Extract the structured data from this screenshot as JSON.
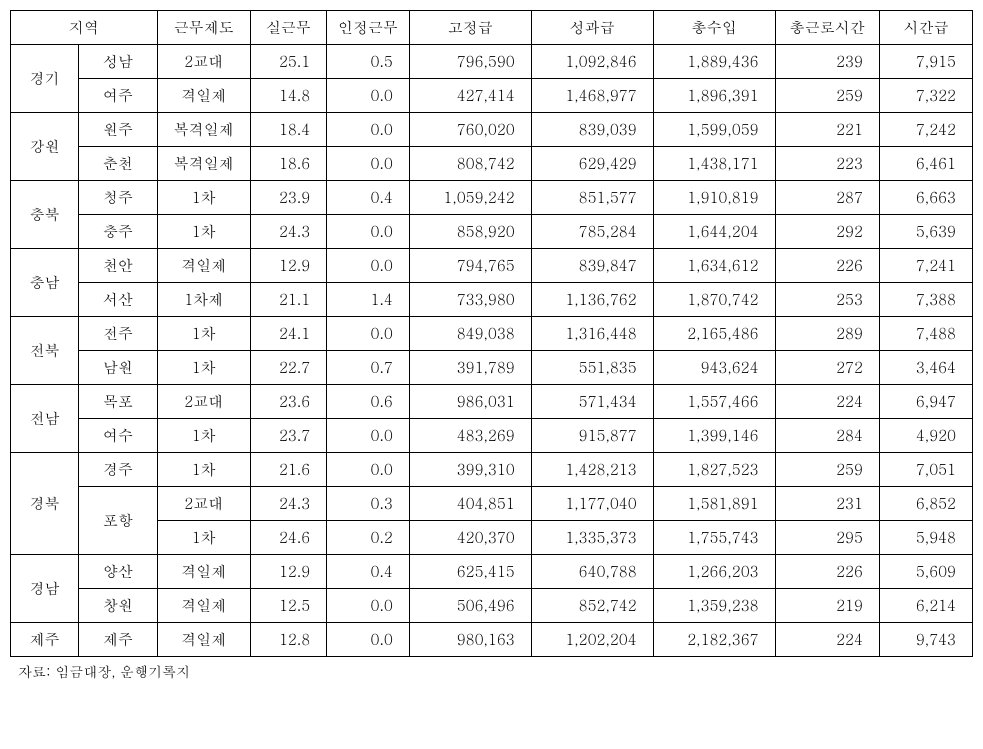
{
  "table": {
    "headers": {
      "region": "지역",
      "system": "근무제도",
      "actual": "실근무",
      "recognized": "인정근무",
      "fixed": "고정급",
      "performance": "성과급",
      "totalIncome": "총수입",
      "totalHours": "총근로시간",
      "hourly": "시간급"
    },
    "regions": [
      {
        "name": "경기",
        "cities": [
          {
            "city": "성남",
            "system": "2교대",
            "actual": "25.1",
            "recog": "0.5",
            "fixed": "796,590",
            "perf": "1,092,846",
            "total": "1,889,436",
            "hours": "239",
            "hourly": "7,915"
          },
          {
            "city": "여주",
            "system": "격일제",
            "actual": "14.8",
            "recog": "0.0",
            "fixed": "427,414",
            "perf": "1,468,977",
            "total": "1,896,391",
            "hours": "259",
            "hourly": "7,322"
          }
        ]
      },
      {
        "name": "강원",
        "cities": [
          {
            "city": "원주",
            "system": "복격일제",
            "actual": "18.4",
            "recog": "0.0",
            "fixed": "760,020",
            "perf": "839,039",
            "total": "1,599,059",
            "hours": "221",
            "hourly": "7,242"
          },
          {
            "city": "춘천",
            "system": "복격일제",
            "actual": "18.6",
            "recog": "0.0",
            "fixed": "808,742",
            "perf": "629,429",
            "total": "1,438,171",
            "hours": "223",
            "hourly": "6,461"
          }
        ]
      },
      {
        "name": "충북",
        "cities": [
          {
            "city": "청주",
            "system": "1차",
            "actual": "23.9",
            "recog": "0.4",
            "fixed": "1,059,242",
            "perf": "851,577",
            "total": "1,910,819",
            "hours": "287",
            "hourly": "6,663"
          },
          {
            "city": "충주",
            "system": "1차",
            "actual": "24.3",
            "recog": "0.0",
            "fixed": "858,920",
            "perf": "785,284",
            "total": "1,644,204",
            "hours": "292",
            "hourly": "5,639"
          }
        ]
      },
      {
        "name": "충남",
        "cities": [
          {
            "city": "천안",
            "system": "격일제",
            "actual": "12.9",
            "recog": "0.0",
            "fixed": "794,765",
            "perf": "839,847",
            "total": "1,634,612",
            "hours": "226",
            "hourly": "7,241"
          },
          {
            "city": "서산",
            "system": "1차제",
            "actual": "21.1",
            "recog": "1.4",
            "fixed": "733,980",
            "perf": "1,136,762",
            "total": "1,870,742",
            "hours": "253",
            "hourly": "7,388"
          }
        ]
      },
      {
        "name": "전북",
        "cities": [
          {
            "city": "전주",
            "system": "1차",
            "actual": "24.1",
            "recog": "0.0",
            "fixed": "849,038",
            "perf": "1,316,448",
            "total": "2,165,486",
            "hours": "289",
            "hourly": "7,488"
          },
          {
            "city": "남원",
            "system": "1차",
            "actual": "22.7",
            "recog": "0.7",
            "fixed": "391,789",
            "perf": "551,835",
            "total": "943,624",
            "hours": "272",
            "hourly": "3,464"
          }
        ]
      },
      {
        "name": "전남",
        "cities": [
          {
            "city": "목포",
            "system": "2교대",
            "actual": "23.6",
            "recog": "0.6",
            "fixed": "986,031",
            "perf": "571,434",
            "total": "1,557,466",
            "hours": "224",
            "hourly": "6,947"
          },
          {
            "city": "여수",
            "system": "1차",
            "actual": "23.7",
            "recog": "0.0",
            "fixed": "483,269",
            "perf": "915,877",
            "total": "1,399,146",
            "hours": "284",
            "hourly": "4,920"
          }
        ]
      },
      {
        "name": "경북",
        "cities": [
          {
            "city": "경주",
            "system": "1차",
            "actual": "21.6",
            "recog": "0.0",
            "fixed": "399,310",
            "perf": "1,428,213",
            "total": "1,827,523",
            "hours": "259",
            "hourly": "7,051"
          },
          {
            "city": "포항",
            "cityRowspan": 2,
            "system": "2교대",
            "actual": "24.3",
            "recog": "0.3",
            "fixed": "404,851",
            "perf": "1,177,040",
            "total": "1,581,891",
            "hours": "231",
            "hourly": "6,852"
          },
          {
            "city": null,
            "system": "1차",
            "actual": "24.6",
            "recog": "0.2",
            "fixed": "420,370",
            "perf": "1,335,373",
            "total": "1,755,743",
            "hours": "295",
            "hourly": "5,948"
          }
        ]
      },
      {
        "name": "경남",
        "cities": [
          {
            "city": "양산",
            "system": "격일제",
            "actual": "12.9",
            "recog": "0.4",
            "fixed": "625,415",
            "perf": "640,788",
            "total": "1,266,203",
            "hours": "226",
            "hourly": "5,609"
          },
          {
            "city": "창원",
            "system": "격일제",
            "actual": "12.5",
            "recog": "0.0",
            "fixed": "506,496",
            "perf": "852,742",
            "total": "1,359,238",
            "hours": "219",
            "hourly": "6,214"
          }
        ]
      },
      {
        "name": "제주",
        "cities": [
          {
            "city": "제주",
            "system": "격일제",
            "actual": "12.8",
            "recog": "0.0",
            "fixed": "980,163",
            "perf": "1,202,204",
            "total": "2,182,367",
            "hours": "224",
            "hourly": "9,743"
          }
        ]
      }
    ]
  },
  "sourceLabel": "자료: 임금대장, 운행기록지"
}
